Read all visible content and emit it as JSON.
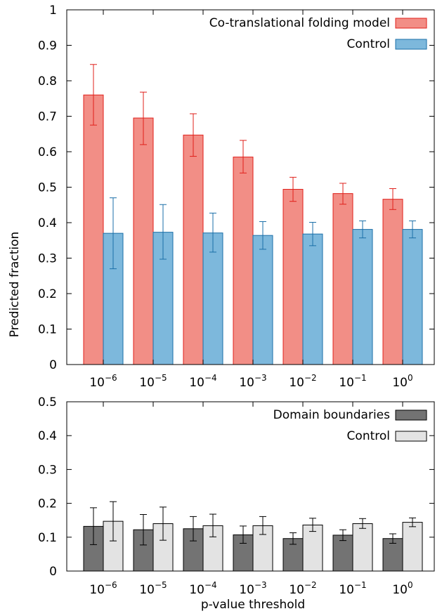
{
  "chart_data": [
    {
      "type": "bar",
      "categories": [
        "10^-6",
        "10^-5",
        "10^-4",
        "10^-3",
        "10^-2",
        "10^-1",
        "10^0"
      ],
      "category_labels": [
        {
          "base": "10",
          "exp": "−6"
        },
        {
          "base": "10",
          "exp": "−5"
        },
        {
          "base": "10",
          "exp": "−4"
        },
        {
          "base": "10",
          "exp": "−3"
        },
        {
          "base": "10",
          "exp": "−2"
        },
        {
          "base": "10",
          "exp": "−1"
        },
        {
          "base": "10",
          "exp": "0"
        }
      ],
      "ylabel": "Predicted fraction",
      "xlabel": "",
      "ylim": [
        0,
        1
      ],
      "yticks": [
        0,
        0.1,
        0.2,
        0.3,
        0.4,
        0.5,
        0.6,
        0.7,
        0.8,
        0.9,
        1
      ],
      "ytick_labels": [
        "0",
        "0.1",
        "0.2",
        "0.3",
        "0.4",
        "0.5",
        "0.6",
        "0.7",
        "0.8",
        "0.9",
        "1"
      ],
      "legend_position": "top-right",
      "grid": false,
      "series": [
        {
          "name": "Co-translational folding model",
          "fill": "#f28e86",
          "stroke": "#e0201b",
          "values": [
            0.76,
            0.695,
            0.647,
            0.585,
            0.494,
            0.482,
            0.466
          ],
          "err_low": [
            0.675,
            0.62,
            0.587,
            0.54,
            0.46,
            0.452,
            0.437
          ],
          "err_high": [
            0.846,
            0.768,
            0.707,
            0.632,
            0.528,
            0.511,
            0.496
          ]
        },
        {
          "name": "Control",
          "fill": "#7db8dc",
          "stroke": "#1b6fa8",
          "values": [
            0.37,
            0.373,
            0.371,
            0.364,
            0.368,
            0.381,
            0.381
          ],
          "err_low": [
            0.27,
            0.297,
            0.317,
            0.325,
            0.335,
            0.357,
            0.357
          ],
          "err_high": [
            0.47,
            0.451,
            0.427,
            0.403,
            0.401,
            0.405,
            0.405
          ]
        }
      ]
    },
    {
      "type": "bar",
      "categories": [
        "10^-6",
        "10^-5",
        "10^-4",
        "10^-3",
        "10^-2",
        "10^-1",
        "10^0"
      ],
      "category_labels": [
        {
          "base": "10",
          "exp": "−6"
        },
        {
          "base": "10",
          "exp": "−5"
        },
        {
          "base": "10",
          "exp": "−4"
        },
        {
          "base": "10",
          "exp": "−3"
        },
        {
          "base": "10",
          "exp": "−2"
        },
        {
          "base": "10",
          "exp": "−1"
        },
        {
          "base": "10",
          "exp": "0"
        }
      ],
      "xlabel": "p-value threshold",
      "ylabel": "",
      "ylim": [
        0,
        0.5
      ],
      "yticks": [
        0,
        0.1,
        0.2,
        0.3,
        0.4,
        0.5
      ],
      "ytick_labels": [
        "0",
        "0.1",
        "0.2",
        "0.3",
        "0.4",
        "0.5"
      ],
      "legend_position": "top-right",
      "grid": false,
      "series": [
        {
          "name": "Domain boundaries",
          "fill": "#737373",
          "stroke": "#000000",
          "values": [
            0.132,
            0.122,
            0.125,
            0.107,
            0.096,
            0.106,
            0.096
          ],
          "err_low": [
            0.078,
            0.077,
            0.089,
            0.082,
            0.079,
            0.09,
            0.082
          ],
          "err_high": [
            0.187,
            0.167,
            0.161,
            0.133,
            0.113,
            0.122,
            0.11
          ]
        },
        {
          "name": "Control",
          "fill": "#e3e3e3",
          "stroke": "#000000",
          "values": [
            0.147,
            0.14,
            0.134,
            0.134,
            0.136,
            0.14,
            0.144
          ],
          "err_low": [
            0.089,
            0.091,
            0.101,
            0.108,
            0.117,
            0.126,
            0.131
          ],
          "err_high": [
            0.205,
            0.189,
            0.168,
            0.161,
            0.156,
            0.155,
            0.157
          ]
        }
      ]
    }
  ]
}
